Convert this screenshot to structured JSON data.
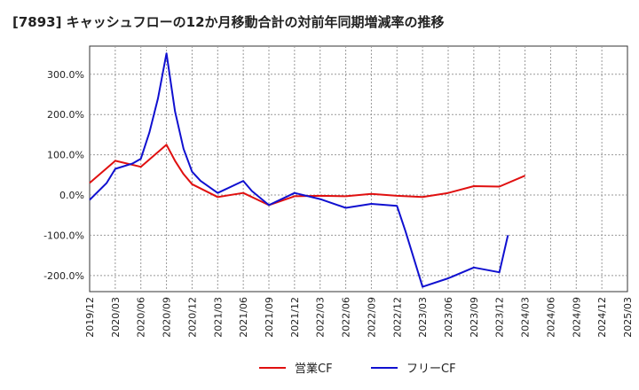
{
  "chart_data": {
    "type": "line",
    "title": "[7893]  キャッシュフローの12か月移動合計の対前年同期増減率の推移",
    "xlabel": "",
    "ylabel": "",
    "ylim": [
      -240,
      370
    ],
    "y_ticks": [
      {
        "value": 300,
        "label": "300.0%"
      },
      {
        "value": 200,
        "label": "200.0%"
      },
      {
        "value": 100,
        "label": "100.0%"
      },
      {
        "value": 0,
        "label": "0.0%"
      },
      {
        "value": -100,
        "label": "-100.0%"
      },
      {
        "value": -200,
        "label": "-200.0%"
      }
    ],
    "x_tick_labels": [
      "2019/12",
      "2020/03",
      "2020/06",
      "2020/09",
      "2020/12",
      "2021/03",
      "2021/06",
      "2021/09",
      "2021/12",
      "2022/03",
      "2022/06",
      "2022/09",
      "2022/12",
      "2023/03",
      "2023/06",
      "2023/09",
      "2023/12",
      "2024/03",
      "2024/06",
      "2024/09",
      "2024/12",
      "2025/03"
    ],
    "x_range_months": [
      0,
      63
    ],
    "grid": true,
    "legend_position": "bottom-center",
    "series": [
      {
        "name": "営業CF",
        "color": "#e01010",
        "points": [
          [
            0,
            30
          ],
          [
            3,
            85
          ],
          [
            6,
            70
          ],
          [
            9,
            125
          ],
          [
            10,
            85
          ],
          [
            11,
            52
          ],
          [
            12,
            27
          ],
          [
            15,
            -5
          ],
          [
            18,
            5
          ],
          [
            21,
            -25
          ],
          [
            24,
            -3
          ],
          [
            27,
            -2
          ],
          [
            30,
            -3
          ],
          [
            33,
            3
          ],
          [
            36,
            -2
          ],
          [
            39,
            -5
          ],
          [
            42,
            5
          ],
          [
            45,
            22
          ],
          [
            48,
            21
          ],
          [
            51,
            48
          ]
        ]
      },
      {
        "name": "フリーCF",
        "color": "#1010d0",
        "points": [
          [
            0,
            -12
          ],
          [
            2,
            30
          ],
          [
            3,
            65
          ],
          [
            5,
            78
          ],
          [
            6,
            90
          ],
          [
            7,
            155
          ],
          [
            8,
            240
          ],
          [
            9,
            352
          ],
          [
            10,
            208
          ],
          [
            11,
            115
          ],
          [
            12,
            58
          ],
          [
            13,
            35
          ],
          [
            15,
            5
          ],
          [
            18,
            35
          ],
          [
            19,
            10
          ],
          [
            21,
            -25
          ],
          [
            24,
            5
          ],
          [
            27,
            -10
          ],
          [
            30,
            -32
          ],
          [
            33,
            -22
          ],
          [
            36,
            -27
          ],
          [
            37,
            -90
          ],
          [
            39,
            -228
          ],
          [
            42,
            -207
          ],
          [
            45,
            -180
          ],
          [
            48,
            -192
          ],
          [
            49,
            -100
          ]
        ]
      }
    ]
  }
}
